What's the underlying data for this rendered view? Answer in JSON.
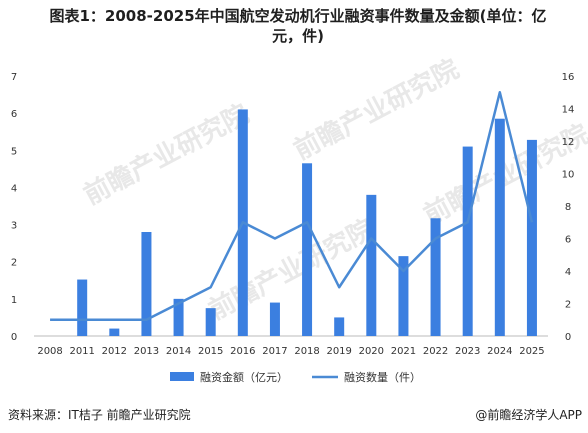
{
  "title_line1": "图表1：2008-2025年中国航空发动机行业融资事件数量及金额(单位：亿",
  "title_line2": "元，件)",
  "source": "资料来源：IT桔子 前瞻产业研究院",
  "brand": "@前瞻经济学人APP",
  "watermark": "前瞻产业研究院",
  "chart_data": {
    "type": "bar",
    "categories": [
      "2008",
      "2011",
      "2012",
      "2013",
      "2014",
      "2015",
      "2016",
      "2017",
      "2018",
      "2019",
      "2020",
      "2021",
      "2022",
      "2023",
      "2024",
      "2025"
    ],
    "series": [
      {
        "name": "融资金额（亿元）",
        "type": "bar",
        "axis": "left",
        "color": "#3b7fe0",
        "values": [
          0,
          1.52,
          0.2,
          2.8,
          1.0,
          0.75,
          6.1,
          0.9,
          4.65,
          0.5,
          3.8,
          2.15,
          3.17,
          5.1,
          5.85,
          5.28
        ]
      },
      {
        "name": "融资数量（件）",
        "type": "line",
        "axis": "right",
        "color": "#4a8ad4",
        "values": [
          1,
          1,
          1,
          1,
          2,
          3,
          7,
          6,
          7,
          3,
          6,
          4,
          6,
          7,
          15,
          7
        ]
      }
    ],
    "ylim_left": [
      0,
      7
    ],
    "ylim_right": [
      0,
      16
    ],
    "yticks_left": [
      0,
      1,
      2,
      3,
      4,
      5,
      6,
      7
    ],
    "yticks_right": [
      0,
      2,
      4,
      6,
      8,
      10,
      12,
      14,
      16
    ],
    "legend_position": "bottom"
  }
}
